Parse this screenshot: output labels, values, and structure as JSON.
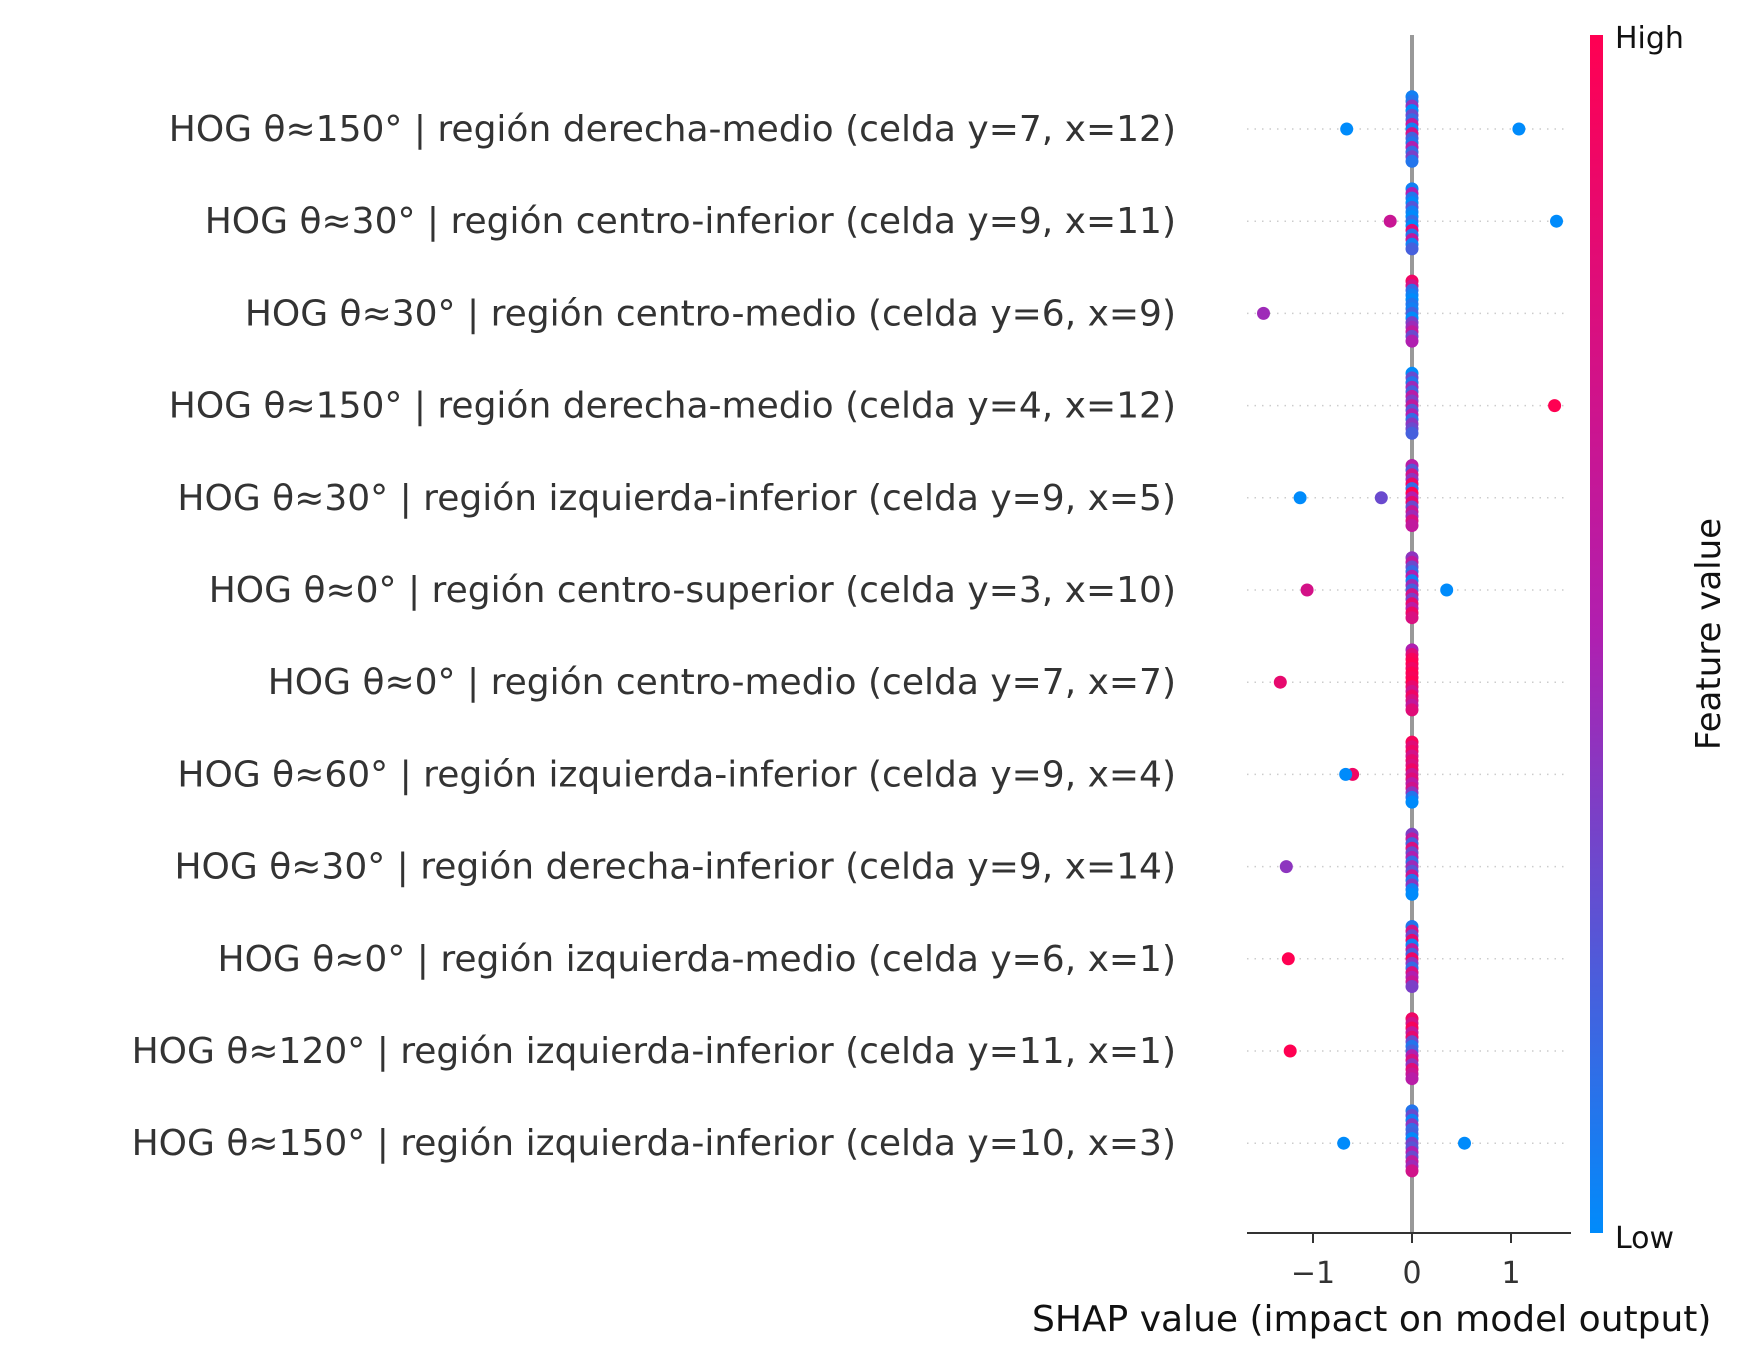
{
  "chart_data": {
    "type": "scatter",
    "subtype": "shap-beeswarm",
    "xlabel": "SHAP value (impact on model output)",
    "xlim": [
      -1.65,
      1.6
    ],
    "xticks": [
      {
        "value": -1,
        "label": "−1"
      },
      {
        "value": 0,
        "label": "0"
      },
      {
        "value": 1,
        "label": "1"
      }
    ],
    "colorbar": {
      "title": "Feature value",
      "high_label": "High",
      "low_label": "Low",
      "low_color": "#008bfb",
      "mid_color": "#b01fb0",
      "high_color": "#ff0052"
    },
    "zero_line_color": "#999999",
    "features": [
      {
        "name": "HOG θ≈150° | región derecha-medio (celda y=7, x=12)",
        "points": [
          {
            "x": -0.66,
            "v": 0.0
          },
          {
            "x": 1.08,
            "v": 0.0
          },
          {
            "x": 0.0,
            "v": 0.05,
            "o": -0.35
          },
          {
            "x": 0.0,
            "v": 0.1,
            "o": -0.3
          },
          {
            "x": 0.0,
            "v": 0.4,
            "o": -0.25
          },
          {
            "x": 0.0,
            "v": 0.0,
            "o": -0.2
          },
          {
            "x": 0.0,
            "v": 0.3,
            "o": -0.15
          },
          {
            "x": 0.0,
            "v": 0.15,
            "o": -0.1
          },
          {
            "x": 0.0,
            "v": 0.6,
            "o": -0.05
          },
          {
            "x": 0.0,
            "v": 0.05,
            "o": 0.0
          },
          {
            "x": 0.0,
            "v": 0.7,
            "o": 0.05
          },
          {
            "x": 0.0,
            "v": 0.2,
            "o": 0.1
          },
          {
            "x": 0.0,
            "v": 0.1,
            "o": 0.15
          },
          {
            "x": 0.0,
            "v": 0.5,
            "o": 0.2
          },
          {
            "x": 0.0,
            "v": 0.15,
            "o": 0.25
          },
          {
            "x": 0.0,
            "v": 0.35,
            "o": 0.3
          },
          {
            "x": 0.0,
            "v": 0.1,
            "o": 0.35
          }
        ]
      },
      {
        "name": "HOG θ≈30° | región centro-inferior (celda y=9, x=11)",
        "points": [
          {
            "x": -0.22,
            "v": 0.65
          },
          {
            "x": 1.46,
            "v": 0.0
          },
          {
            "x": 0.0,
            "v": 0.05,
            "o": -0.35
          },
          {
            "x": 0.0,
            "v": 0.5,
            "o": -0.3
          },
          {
            "x": 0.0,
            "v": 0.1,
            "o": -0.25
          },
          {
            "x": 0.0,
            "v": 0.0,
            "o": -0.2
          },
          {
            "x": 0.0,
            "v": 0.25,
            "o": -0.15
          },
          {
            "x": 0.0,
            "v": 0.05,
            "o": -0.1
          },
          {
            "x": 0.0,
            "v": 0.0,
            "o": -0.05
          },
          {
            "x": 0.0,
            "v": 0.15,
            "o": 0.0
          },
          {
            "x": 0.0,
            "v": 0.0,
            "o": 0.05
          },
          {
            "x": 0.0,
            "v": 0.8,
            "o": 0.1
          },
          {
            "x": 0.0,
            "v": 0.1,
            "o": 0.15
          },
          {
            "x": 0.0,
            "v": 0.6,
            "o": 0.2
          },
          {
            "x": 0.0,
            "v": 0.05,
            "o": 0.25
          },
          {
            "x": 0.0,
            "v": 0.2,
            "o": 0.3
          }
        ]
      },
      {
        "name": "HOG θ≈30° | región centro-medio (celda y=6, x=9)",
        "points": [
          {
            "x": -1.5,
            "v": 0.45
          },
          {
            "x": 0.0,
            "v": 0.9,
            "o": -0.35
          },
          {
            "x": 0.0,
            "v": 0.7,
            "o": -0.3
          },
          {
            "x": 0.0,
            "v": 0.15,
            "o": -0.25
          },
          {
            "x": 0.0,
            "v": 0.05,
            "o": -0.2
          },
          {
            "x": 0.0,
            "v": 0.0,
            "o": -0.15
          },
          {
            "x": 0.0,
            "v": 0.1,
            "o": -0.1
          },
          {
            "x": 0.0,
            "v": 0.05,
            "o": -0.05
          },
          {
            "x": 0.0,
            "v": 0.2,
            "o": 0.0
          },
          {
            "x": 0.0,
            "v": 0.0,
            "o": 0.05
          },
          {
            "x": 0.0,
            "v": 0.35,
            "o": 0.1
          },
          {
            "x": 0.0,
            "v": 0.45,
            "o": 0.15
          },
          {
            "x": 0.0,
            "v": 0.6,
            "o": 0.2
          },
          {
            "x": 0.0,
            "v": 0.3,
            "o": 0.25
          },
          {
            "x": 0.0,
            "v": 0.5,
            "o": 0.3
          }
        ]
      },
      {
        "name": "HOG θ≈150° | región derecha-medio (celda y=4, x=12)",
        "points": [
          {
            "x": 1.44,
            "v": 1.0
          },
          {
            "x": 0.0,
            "v": 0.0,
            "o": -0.35
          },
          {
            "x": 0.0,
            "v": 0.3,
            "o": -0.3
          },
          {
            "x": 0.0,
            "v": 0.1,
            "o": -0.25
          },
          {
            "x": 0.0,
            "v": 0.45,
            "o": -0.2
          },
          {
            "x": 0.0,
            "v": 0.2,
            "o": -0.15
          },
          {
            "x": 0.0,
            "v": 0.55,
            "o": -0.1
          },
          {
            "x": 0.0,
            "v": 0.35,
            "o": -0.05
          },
          {
            "x": 0.0,
            "v": 0.6,
            "o": 0.0
          },
          {
            "x": 0.0,
            "v": 0.25,
            "o": 0.05
          },
          {
            "x": 0.0,
            "v": 0.5,
            "o": 0.1
          },
          {
            "x": 0.0,
            "v": 0.15,
            "o": 0.15
          },
          {
            "x": 0.0,
            "v": 0.4,
            "o": 0.2
          },
          {
            "x": 0.0,
            "v": 0.3,
            "o": 0.25
          },
          {
            "x": 0.0,
            "v": 0.2,
            "o": 0.3
          }
        ]
      },
      {
        "name": "HOG θ≈30° | región izquierda-inferior (celda y=9, x=5)",
        "points": [
          {
            "x": -1.13,
            "v": 0.0
          },
          {
            "x": -0.31,
            "v": 0.3
          },
          {
            "x": 0.0,
            "v": 0.55,
            "o": -0.35
          },
          {
            "x": 0.0,
            "v": 0.25,
            "o": -0.3
          },
          {
            "x": 0.0,
            "v": 0.7,
            "o": -0.25
          },
          {
            "x": 0.0,
            "v": 0.4,
            "o": -0.2
          },
          {
            "x": 0.0,
            "v": 0.9,
            "o": -0.15
          },
          {
            "x": 0.0,
            "v": 0.15,
            "o": -0.1
          },
          {
            "x": 0.0,
            "v": 1.0,
            "o": -0.05
          },
          {
            "x": 0.0,
            "v": 0.5,
            "o": 0.0
          },
          {
            "x": 0.0,
            "v": 0.85,
            "o": 0.05
          },
          {
            "x": 0.0,
            "v": 0.3,
            "o": 0.1
          },
          {
            "x": 0.0,
            "v": 0.65,
            "o": 0.15
          },
          {
            "x": 0.0,
            "v": 0.45,
            "o": 0.2
          },
          {
            "x": 0.0,
            "v": 0.75,
            "o": 0.25
          },
          {
            "x": 0.0,
            "v": 0.6,
            "o": 0.3
          }
        ]
      },
      {
        "name": "HOG θ≈0° | región centro-superior (celda y=3, x=10)",
        "points": [
          {
            "x": -1.06,
            "v": 0.72
          },
          {
            "x": 0.35,
            "v": 0.0
          },
          {
            "x": 0.0,
            "v": 0.4,
            "o": -0.35
          },
          {
            "x": 0.0,
            "v": 0.6,
            "o": -0.3
          },
          {
            "x": 0.0,
            "v": 0.3,
            "o": -0.25
          },
          {
            "x": 0.0,
            "v": 0.15,
            "o": -0.2
          },
          {
            "x": 0.0,
            "v": 0.5,
            "o": -0.15
          },
          {
            "x": 0.0,
            "v": 0.05,
            "o": -0.1
          },
          {
            "x": 0.0,
            "v": 0.45,
            "o": -0.05
          },
          {
            "x": 0.0,
            "v": 0.2,
            "o": 0.0
          },
          {
            "x": 0.0,
            "v": 0.7,
            "o": 0.05
          },
          {
            "x": 0.0,
            "v": 0.35,
            "o": 0.1
          },
          {
            "x": 0.0,
            "v": 0.85,
            "o": 0.15
          },
          {
            "x": 0.0,
            "v": 0.55,
            "o": 0.2
          },
          {
            "x": 0.0,
            "v": 0.9,
            "o": 0.25
          },
          {
            "x": 0.0,
            "v": 0.75,
            "o": 0.3
          }
        ]
      },
      {
        "name": "HOG θ≈0° | región centro-medio (celda y=7, x=7)",
        "points": [
          {
            "x": -1.33,
            "v": 0.85
          },
          {
            "x": 0.0,
            "v": 0.5,
            "o": -0.35
          },
          {
            "x": 0.0,
            "v": 0.8,
            "o": -0.3
          },
          {
            "x": 0.0,
            "v": 0.95,
            "o": -0.25
          },
          {
            "x": 0.0,
            "v": 1.0,
            "o": -0.2
          },
          {
            "x": 0.0,
            "v": 0.9,
            "o": -0.15
          },
          {
            "x": 0.0,
            "v": 1.0,
            "o": -0.1
          },
          {
            "x": 0.0,
            "v": 0.95,
            "o": -0.05
          },
          {
            "x": 0.0,
            "v": 1.0,
            "o": 0.0
          },
          {
            "x": 0.0,
            "v": 0.85,
            "o": 0.05
          },
          {
            "x": 0.0,
            "v": 0.7,
            "o": 0.1
          },
          {
            "x": 0.0,
            "v": 0.9,
            "o": 0.15
          },
          {
            "x": 0.0,
            "v": 0.75,
            "o": 0.2
          },
          {
            "x": 0.0,
            "v": 0.6,
            "o": 0.25
          },
          {
            "x": 0.0,
            "v": 0.8,
            "o": 0.3
          }
        ]
      },
      {
        "name": "HOG θ≈60° | región izquierda-inferior (celda y=9, x=4)",
        "points": [
          {
            "x": -0.6,
            "v": 0.9
          },
          {
            "x": -0.67,
            "v": 0.0
          },
          {
            "x": 0.0,
            "v": 0.95,
            "o": -0.35
          },
          {
            "x": 0.0,
            "v": 0.8,
            "o": -0.3
          },
          {
            "x": 0.0,
            "v": 0.9,
            "o": -0.25
          },
          {
            "x": 0.0,
            "v": 0.7,
            "o": -0.2
          },
          {
            "x": 0.0,
            "v": 0.85,
            "o": -0.15
          },
          {
            "x": 0.0,
            "v": 0.75,
            "o": -0.1
          },
          {
            "x": 0.0,
            "v": 0.9,
            "o": -0.05
          },
          {
            "x": 0.0,
            "v": 0.65,
            "o": 0.0
          },
          {
            "x": 0.0,
            "v": 0.8,
            "o": 0.05
          },
          {
            "x": 0.0,
            "v": 0.55,
            "o": 0.1
          },
          {
            "x": 0.0,
            "v": 0.7,
            "o": 0.15
          },
          {
            "x": 0.0,
            "v": 0.4,
            "o": 0.2
          },
          {
            "x": 0.0,
            "v": 0.1,
            "o": 0.25
          },
          {
            "x": 0.0,
            "v": 0.0,
            "o": 0.3
          }
        ]
      },
      {
        "name": "HOG θ≈30° | región derecha-inferior (celda y=9, x=14)",
        "points": [
          {
            "x": -1.27,
            "v": 0.4
          },
          {
            "x": 0.0,
            "v": 0.35,
            "o": -0.35
          },
          {
            "x": 0.0,
            "v": 0.6,
            "o": -0.3
          },
          {
            "x": 0.0,
            "v": 0.2,
            "o": -0.25
          },
          {
            "x": 0.0,
            "v": 0.75,
            "o": -0.2
          },
          {
            "x": 0.0,
            "v": 0.3,
            "o": -0.15
          },
          {
            "x": 0.0,
            "v": 0.5,
            "o": -0.1
          },
          {
            "x": 0.0,
            "v": 0.15,
            "o": -0.05
          },
          {
            "x": 0.0,
            "v": 0.45,
            "o": 0.0
          },
          {
            "x": 0.0,
            "v": 0.25,
            "o": 0.05
          },
          {
            "x": 0.0,
            "v": 0.65,
            "o": 0.1
          },
          {
            "x": 0.0,
            "v": 0.1,
            "o": 0.15
          },
          {
            "x": 0.0,
            "v": 0.4,
            "o": 0.2
          },
          {
            "x": 0.0,
            "v": 0.05,
            "o": 0.25
          },
          {
            "x": 0.0,
            "v": 0.0,
            "o": 0.3
          }
        ]
      },
      {
        "name": "HOG θ≈0° | región izquierda-medio (celda y=6, x=1)",
        "points": [
          {
            "x": -1.25,
            "v": 1.0
          },
          {
            "x": 0.0,
            "v": 0.1,
            "o": -0.35
          },
          {
            "x": 0.0,
            "v": 0.7,
            "o": -0.3
          },
          {
            "x": 0.0,
            "v": 0.3,
            "o": -0.25
          },
          {
            "x": 0.0,
            "v": 0.85,
            "o": -0.2
          },
          {
            "x": 0.0,
            "v": 0.05,
            "o": -0.15
          },
          {
            "x": 0.0,
            "v": 0.6,
            "o": -0.1
          },
          {
            "x": 0.0,
            "v": 0.2,
            "o": -0.05
          },
          {
            "x": 0.0,
            "v": 0.9,
            "o": 0.0
          },
          {
            "x": 0.0,
            "v": 0.4,
            "o": 0.05
          },
          {
            "x": 0.0,
            "v": 0.15,
            "o": 0.1
          },
          {
            "x": 0.0,
            "v": 0.75,
            "o": 0.15
          },
          {
            "x": 0.0,
            "v": 0.5,
            "o": 0.2
          },
          {
            "x": 0.0,
            "v": 0.65,
            "o": 0.25
          },
          {
            "x": 0.0,
            "v": 0.35,
            "o": 0.3
          }
        ]
      },
      {
        "name": "HOG θ≈120° | región izquierda-inferior (celda y=11, x=1)",
        "points": [
          {
            "x": -1.23,
            "v": 1.0
          },
          {
            "x": 0.0,
            "v": 0.9,
            "o": -0.35
          },
          {
            "x": 0.0,
            "v": 0.7,
            "o": -0.3
          },
          {
            "x": 0.0,
            "v": 0.95,
            "o": -0.25
          },
          {
            "x": 0.0,
            "v": 0.6,
            "o": -0.2
          },
          {
            "x": 0.0,
            "v": 0.85,
            "o": -0.15
          },
          {
            "x": 0.0,
            "v": 0.3,
            "o": -0.1
          },
          {
            "x": 0.0,
            "v": 0.1,
            "o": -0.05
          },
          {
            "x": 0.0,
            "v": 0.2,
            "o": 0.0
          },
          {
            "x": 0.0,
            "v": 0.5,
            "o": 0.05
          },
          {
            "x": 0.0,
            "v": 0.75,
            "o": 0.1
          },
          {
            "x": 0.0,
            "v": 0.4,
            "o": 0.15
          },
          {
            "x": 0.0,
            "v": 0.8,
            "o": 0.2
          },
          {
            "x": 0.0,
            "v": 0.65,
            "o": 0.25
          },
          {
            "x": 0.0,
            "v": 0.55,
            "o": 0.3
          }
        ]
      },
      {
        "name": "HOG θ≈150° | región izquierda-inferior (celda y=10, x=3)",
        "points": [
          {
            "x": -0.69,
            "v": 0.0
          },
          {
            "x": 0.53,
            "v": 0.0
          },
          {
            "x": 0.0,
            "v": 0.1,
            "o": -0.35
          },
          {
            "x": 0.0,
            "v": 0.3,
            "o": -0.3
          },
          {
            "x": 0.0,
            "v": 0.05,
            "o": -0.25
          },
          {
            "x": 0.0,
            "v": 0.4,
            "o": -0.2
          },
          {
            "x": 0.0,
            "v": 0.15,
            "o": -0.15
          },
          {
            "x": 0.0,
            "v": 0.2,
            "o": -0.1
          },
          {
            "x": 0.0,
            "v": 0.0,
            "o": -0.05
          },
          {
            "x": 0.0,
            "v": 0.35,
            "o": 0.0
          },
          {
            "x": 0.0,
            "v": 0.25,
            "o": 0.05
          },
          {
            "x": 0.0,
            "v": 0.5,
            "o": 0.1
          },
          {
            "x": 0.0,
            "v": 0.3,
            "o": 0.15
          },
          {
            "x": 0.0,
            "v": 0.6,
            "o": 0.2
          },
          {
            "x": 0.0,
            "v": 0.45,
            "o": 0.25
          },
          {
            "x": 0.0,
            "v": 0.7,
            "o": 0.3
          }
        ]
      }
    ]
  }
}
